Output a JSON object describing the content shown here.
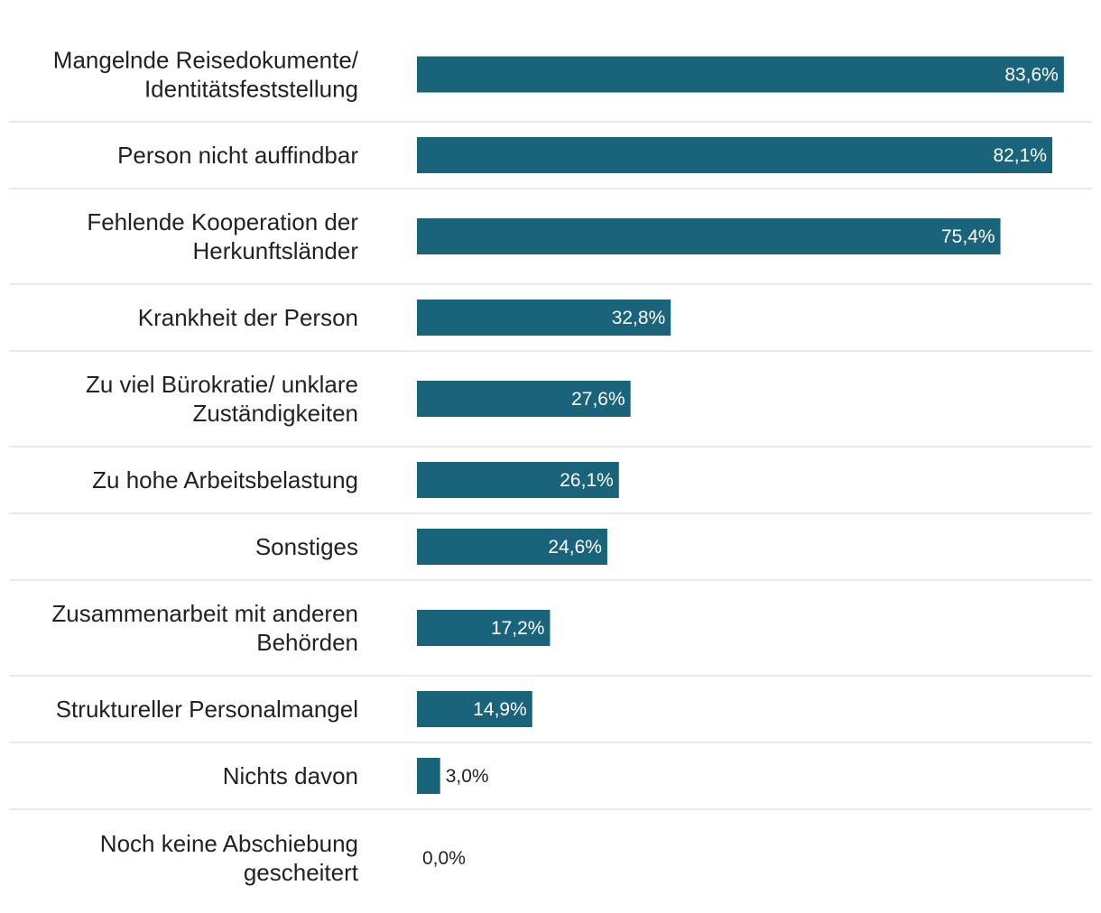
{
  "colors": {
    "bar": "#19637b",
    "label_inside": "#ffffff",
    "label_outside": "#222222",
    "divider": "#e3e3e3",
    "category_text": "#222222"
  },
  "chart_data": {
    "type": "bar",
    "orientation": "horizontal",
    "title": "",
    "xlabel": "",
    "ylabel": "",
    "xlim": [
      0,
      100
    ],
    "unit": "%",
    "grid": false,
    "legend": "none",
    "categories": [
      "Mangelnde Reisedokumente/ Identitätsfeststellung",
      "Person nicht auffindbar",
      "Fehlende Kooperation der Herkunftsländer",
      "Krankheit der Person",
      "Zu viel Bürokratie/ unklare Zuständigkeiten",
      "Zu hohe Arbeitsbelastung",
      "Sonstiges",
      "Zusammenarbeit mit anderen Behörden",
      "Struktureller Personalmangel",
      "Nichts davon",
      "Noch keine Abschiebung gescheitert"
    ],
    "category_lines": [
      [
        "Mangelnde Reisedokumente/",
        "Identitätsfeststellung"
      ],
      [
        "Person nicht auffindbar"
      ],
      [
        "Fehlende Kooperation der",
        "Herkunftsländer"
      ],
      [
        "Krankheit der Person"
      ],
      [
        "Zu viel Bürokratie/ unklare",
        "Zuständigkeiten"
      ],
      [
        "Zu hohe Arbeitsbelastung"
      ],
      [
        "Sonstiges"
      ],
      [
        "Zusammenarbeit mit anderen",
        "Behörden"
      ],
      [
        "Struktureller Personalmangel"
      ],
      [
        "Nichts davon"
      ],
      [
        "Noch keine Abschiebung",
        "gescheitert"
      ]
    ],
    "values": [
      83.6,
      82.1,
      75.4,
      32.8,
      27.6,
      26.1,
      24.6,
      17.2,
      14.9,
      3.0,
      0.0
    ],
    "value_labels": [
      "83,6%",
      "82,1%",
      "75,4%",
      "32,8%",
      "27,6%",
      "26,1%",
      "24,6%",
      "17,2%",
      "14,9%",
      "3,0%",
      "0,0%"
    ]
  }
}
